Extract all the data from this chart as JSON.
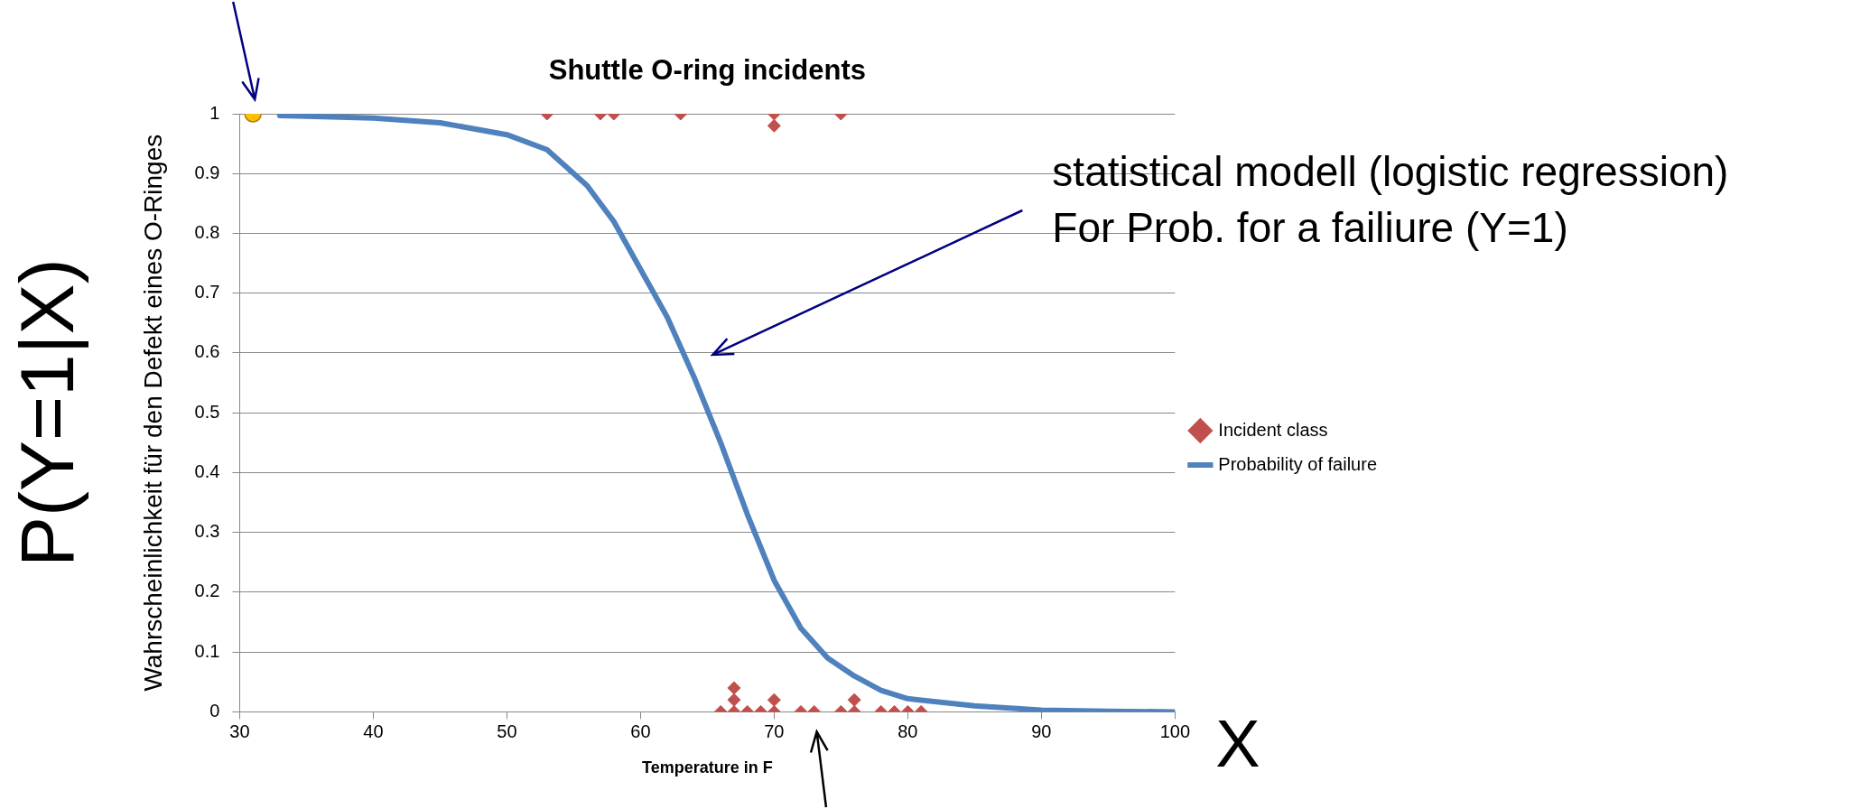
{
  "chart_data": {
    "type": "scatter",
    "title": "Shuttle O-ring incidents",
    "xlabel": "Temperature in F",
    "ylabel": "Wahrscheinlichkeit für den Defekt eines O-Ringes",
    "xlim": [
      30,
      100
    ],
    "xticks": [
      30,
      40,
      50,
      60,
      70,
      80,
      90,
      100
    ],
    "ylim": [
      0,
      1
    ],
    "yticks": [
      0,
      0.1,
      0.2,
      0.3,
      0.4,
      0.5,
      0.6,
      0.7,
      0.8,
      0.9,
      1
    ],
    "grid": "y",
    "legend": "right",
    "annotations": [
      "statistical modell (logistic regression)\nFor Prob. for a failiure (Y=1)",
      "P(Y=1|X)",
      "X"
    ],
    "series": [
      {
        "name": "Incident class",
        "marker": "diamond",
        "color": "#c0504d",
        "x": [
          53,
          57,
          58,
          63,
          70,
          70,
          75,
          66,
          67,
          67,
          67,
          68,
          69,
          70,
          70,
          72,
          73,
          75,
          76,
          76,
          78,
          79,
          80,
          81
        ],
        "values": [
          1,
          1,
          1,
          1,
          1,
          0.98,
          1,
          0,
          0,
          0.02,
          0.04,
          0,
          0,
          0,
          0.02,
          0,
          0,
          0,
          0,
          0.02,
          0,
          0,
          0,
          0
        ]
      },
      {
        "name": "Probability of failure",
        "type": "line",
        "marker": "none",
        "color": "#4f81bd",
        "x": [
          33,
          35,
          40,
          45,
          50,
          53,
          56,
          58,
          60,
          62,
          64,
          66,
          68,
          70,
          72,
          74,
          76,
          78,
          80,
          85,
          90,
          95,
          100
        ],
        "values": [
          0.997,
          0.996,
          0.993,
          0.985,
          0.965,
          0.94,
          0.88,
          0.82,
          0.74,
          0.66,
          0.56,
          0.45,
          0.33,
          0.22,
          0.14,
          0.09,
          0.06,
          0.036,
          0.022,
          0.01,
          0.003,
          0.001,
          0
        ]
      },
      {
        "marker": "circle",
        "color": "#ffc000",
        "x": [
          31
        ],
        "values": [
          1
        ]
      }
    ]
  }
}
